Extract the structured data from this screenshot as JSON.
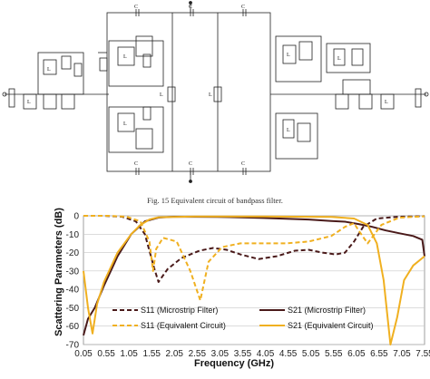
{
  "figure_caption": "Fig. 15 Equivalent circuit of bandpass filter.",
  "bottom_caption": "",
  "circuit_labels": {
    "capacitor": "C",
    "inductor": "L"
  },
  "colors": {
    "s11_microstrip": "#4a1a1a",
    "s21_microstrip": "#4a1a1a",
    "s11_equivalent": "#f0b020",
    "s21_equivalent": "#f0b020"
  },
  "chart_data": {
    "type": "line",
    "xlabel": "Frequency (GHz)",
    "ylabel": "Scattering Parameters (dB)",
    "xlim": [
      0.05,
      7.55
    ],
    "ylim": [
      -70,
      0
    ],
    "xticks": [
      "0.05",
      "0.55",
      "1.05",
      "1.55",
      "2.05",
      "2.55",
      "3.05",
      "3.55",
      "4.05",
      "4.55",
      "5.05",
      "5.55",
      "6.05",
      "6.55",
      "7.05",
      "7.55"
    ],
    "yticks": [
      "0",
      "-10",
      "-20",
      "-30",
      "-40",
      "-50",
      "-60",
      "-70"
    ],
    "grid": true,
    "legend_position": "bottom-center",
    "series": [
      {
        "name": "S11 (Microstrip Filter)",
        "style": "dashed",
        "x": [
          0.05,
          0.5,
          0.9,
          1.2,
          1.4,
          1.6,
          1.7,
          1.9,
          2.2,
          2.6,
          2.9,
          3.2,
          3.5,
          3.9,
          4.3,
          4.7,
          5.0,
          5.3,
          5.6,
          5.8,
          6.0,
          6.2,
          6.5,
          7.0,
          7.55
        ],
        "y": [
          0,
          0,
          -0.5,
          -3,
          -10,
          -28,
          -36,
          -29,
          -23,
          -19,
          -17.5,
          -18.5,
          -21,
          -23.5,
          -22,
          -19,
          -18.5,
          -20,
          -21,
          -20,
          -14,
          -6,
          -1.5,
          -0.5,
          -0.2
        ]
      },
      {
        "name": "S21 (Microstrip Filter)",
        "style": "solid",
        "x": [
          0.05,
          0.15,
          0.3,
          0.5,
          0.8,
          1.1,
          1.4,
          1.7,
          2.05,
          3,
          4,
          5,
          5.5,
          5.8,
          6.1,
          6.4,
          6.7,
          7.0,
          7.3,
          7.5,
          7.55
        ],
        "y": [
          -65,
          -56,
          -50,
          -38,
          -22,
          -10,
          -3,
          -1,
          -0.5,
          -0.6,
          -1.2,
          -2,
          -2.8,
          -3.2,
          -4.5,
          -6,
          -8,
          -9.5,
          -11,
          -13,
          -22
        ]
      },
      {
        "name": "S11 (Equivalent Circuit)",
        "style": "dashed",
        "x": [
          0.05,
          0.6,
          1.0,
          1.3,
          1.5,
          1.58,
          1.65,
          1.8,
          2.1,
          2.4,
          2.62,
          2.8,
          3.1,
          3.5,
          4.0,
          4.5,
          5.0,
          5.5,
          5.8,
          6.0,
          6.1,
          6.3,
          6.6,
          7.0,
          7.55
        ],
        "y": [
          0,
          0,
          -0.5,
          -3,
          -14,
          -30,
          -18,
          -12,
          -14,
          -30,
          -46,
          -25,
          -17,
          -15,
          -15,
          -15,
          -14,
          -11,
          -6,
          -4,
          -8,
          -15,
          -5,
          -1,
          -0.3
        ]
      },
      {
        "name": "S21 (Equivalent Circuit)",
        "style": "solid",
        "x": [
          0.05,
          0.15,
          0.25,
          0.35,
          0.5,
          0.8,
          1.1,
          1.3,
          1.5,
          1.7,
          2.5,
          4,
          5.5,
          6,
          6.3,
          6.5,
          6.65,
          6.8,
          6.95,
          7.1,
          7.3,
          7.55
        ],
        "y": [
          -30,
          -50,
          -64,
          -48,
          -36,
          -20,
          -10,
          -5,
          -2,
          -0.8,
          -0.4,
          -0.4,
          -0.6,
          -1.5,
          -5,
          -15,
          -35,
          -70,
          -55,
          -35,
          -27,
          -22
        ]
      }
    ]
  }
}
